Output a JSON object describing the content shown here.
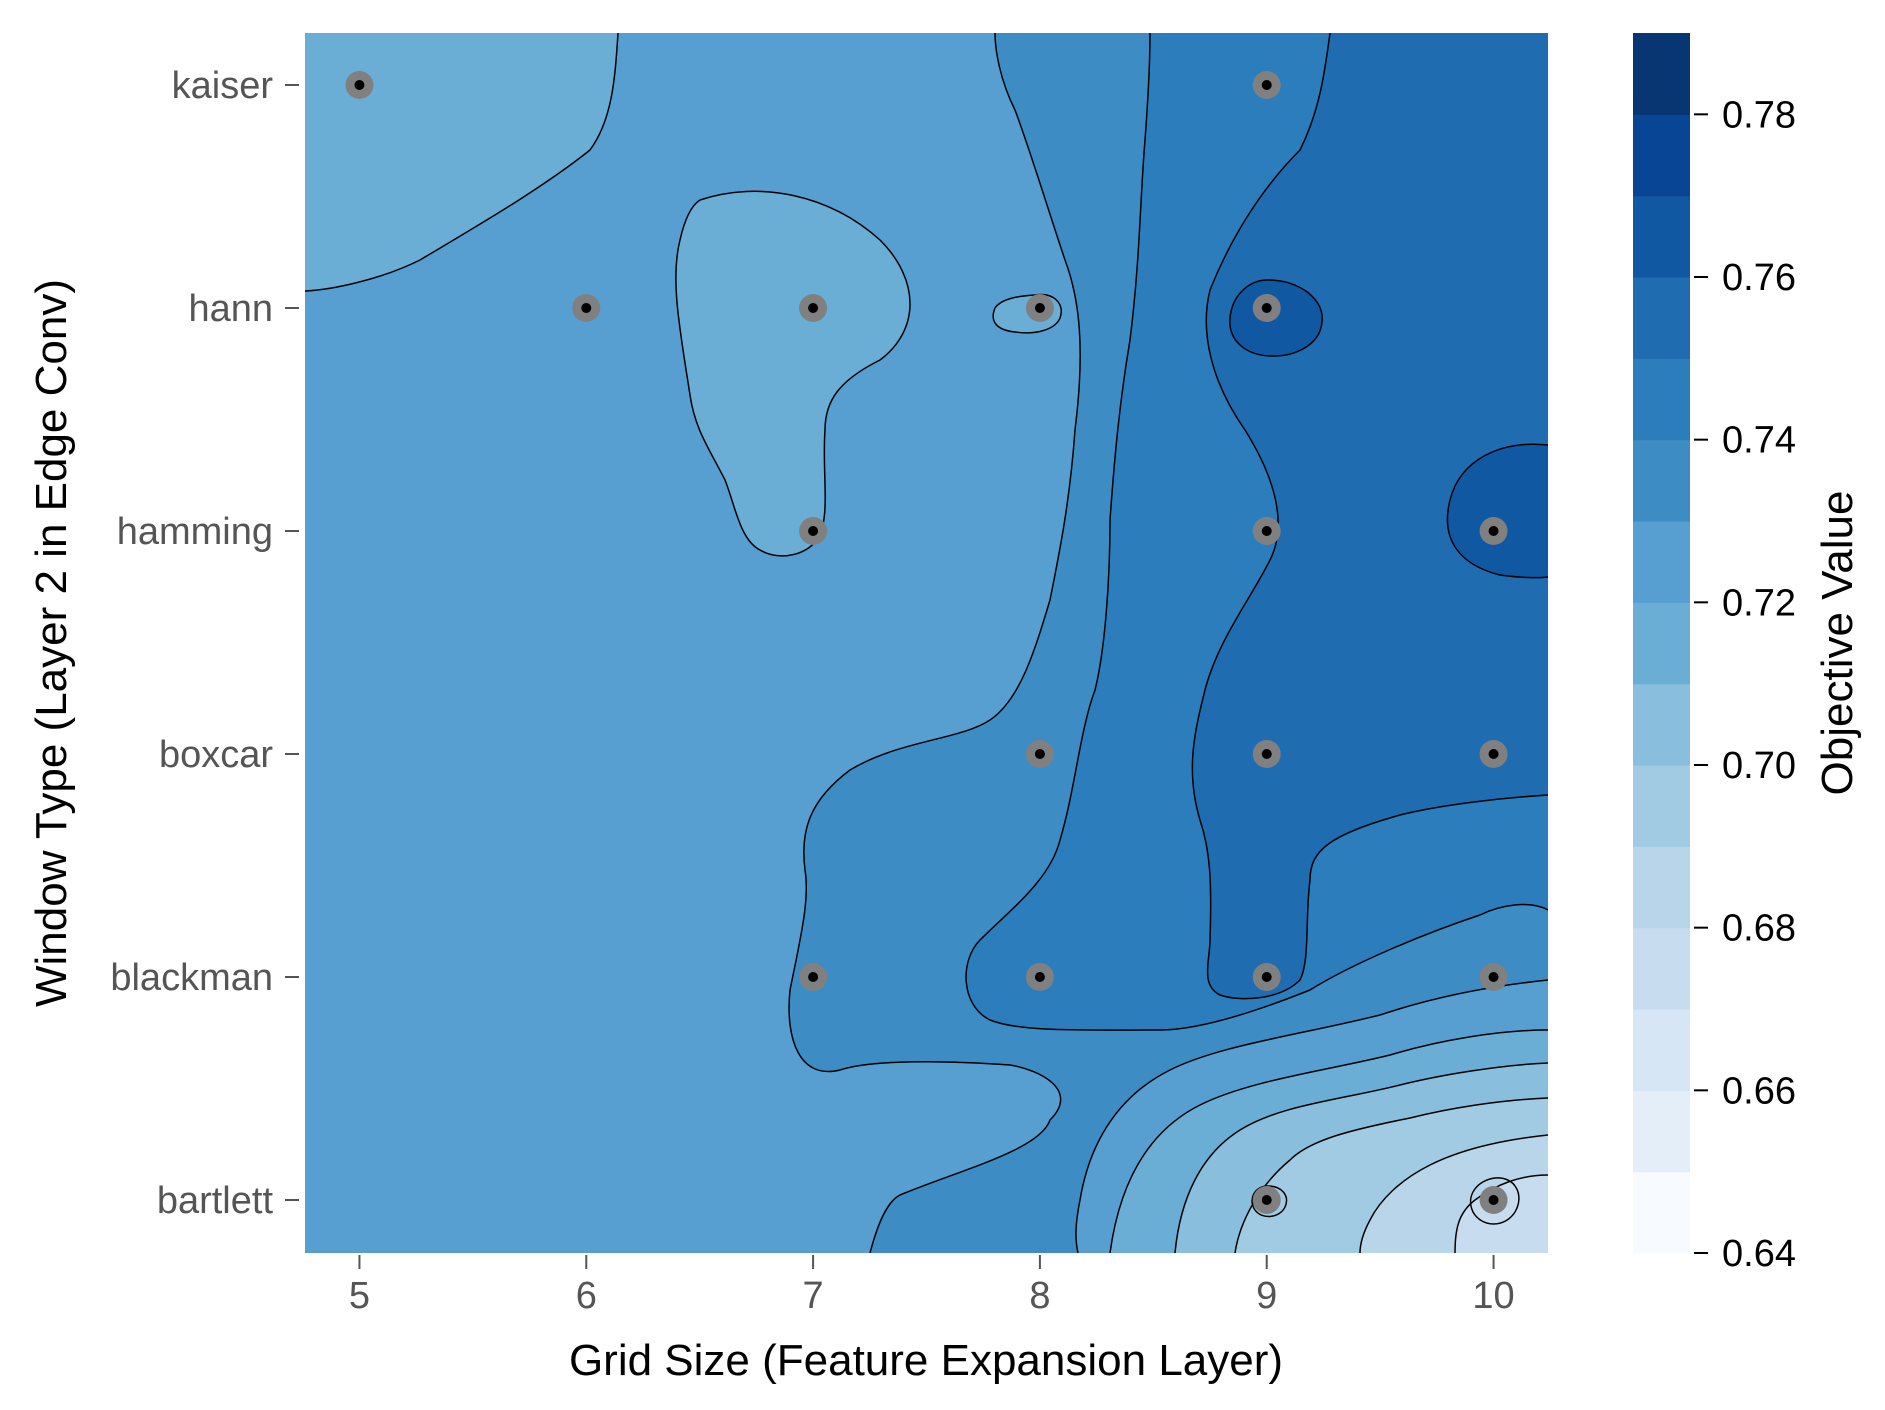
{
  "chart_data": {
    "type": "contour",
    "xlabel": "Grid Size (Feature Expansion Layer)",
    "ylabel": "Window Type (Layer 2 in Edge Conv)",
    "x_ticks": [
      5,
      6,
      7,
      8,
      9,
      10
    ],
    "x_tick_labels": [
      "5",
      "6",
      "7",
      "8",
      "9",
      "10"
    ],
    "xlim": [
      4.76,
      10.24
    ],
    "y_categories": [
      "kaiser",
      "hann",
      "hamming",
      "boxcar",
      "blackman",
      "bartlett"
    ],
    "colorbar": {
      "label": "Objective Value",
      "range": [
        0.64,
        0.79
      ],
      "tick_values": [
        0.64,
        0.66,
        0.68,
        0.7,
        0.72,
        0.74,
        0.76,
        0.78
      ],
      "tick_labels": [
        "0.64",
        "0.66",
        "0.68",
        "0.70",
        "0.72",
        "0.74",
        "0.76",
        "0.78"
      ],
      "level_step": 0.01,
      "colors": [
        "#f7fbff",
        "#e3eef9",
        "#d6e6f4",
        "#c8dcf0",
        "#b8d5ea",
        "#a1cbe2",
        "#89bedc",
        "#6aaed6",
        "#569fd0",
        "#3d8dc4",
        "#2c7dbb",
        "#1f6cb1",
        "#1158a3",
        "#084594",
        "#083672"
      ]
    },
    "trials": [
      {
        "x": 5,
        "y": "kaiser"
      },
      {
        "x": 9,
        "y": "kaiser"
      },
      {
        "x": 6,
        "y": "hann"
      },
      {
        "x": 7,
        "y": "hann"
      },
      {
        "x": 8,
        "y": "hann"
      },
      {
        "x": 9,
        "y": "hann"
      },
      {
        "x": 7,
        "y": "hamming"
      },
      {
        "x": 9,
        "y": "hamming"
      },
      {
        "x": 10,
        "y": "hamming"
      },
      {
        "x": 8,
        "y": "boxcar"
      },
      {
        "x": 9,
        "y": "boxcar"
      },
      {
        "x": 10,
        "y": "boxcar"
      },
      {
        "x": 7,
        "y": "blackman"
      },
      {
        "x": 8,
        "y": "blackman"
      },
      {
        "x": 9,
        "y": "blackman"
      },
      {
        "x": 10,
        "y": "blackman"
      },
      {
        "x": 9,
        "y": "bartlett"
      },
      {
        "x": 10,
        "y": "bartlett"
      }
    ],
    "surface_estimate": [
      {
        "x": 4.8,
        "y": "kaiser",
        "value": 0.712
      },
      {
        "x": 5.5,
        "y": "hann",
        "value": 0.722
      },
      {
        "x": 7.0,
        "y": "hamming",
        "value": 0.716
      },
      {
        "x": 8.4,
        "y": "kaiser",
        "value": 0.735
      },
      {
        "x": 9.5,
        "y": "kaiser",
        "value": 0.755
      },
      {
        "x": 10.0,
        "y": "hamming",
        "value": 0.765
      },
      {
        "x": 9.0,
        "y": "hann",
        "value": 0.765
      },
      {
        "x": 9.0,
        "y": "boxcar",
        "value": 0.755
      },
      {
        "x": 6.0,
        "y": "bartlett",
        "value": 0.722
      },
      {
        "x": 8.0,
        "y": "blackman",
        "value": 0.735
      },
      {
        "x": 9.0,
        "y": "bartlett",
        "value": 0.69
      },
      {
        "x": 10.0,
        "y": "bartlett",
        "value": 0.665
      }
    ]
  }
}
